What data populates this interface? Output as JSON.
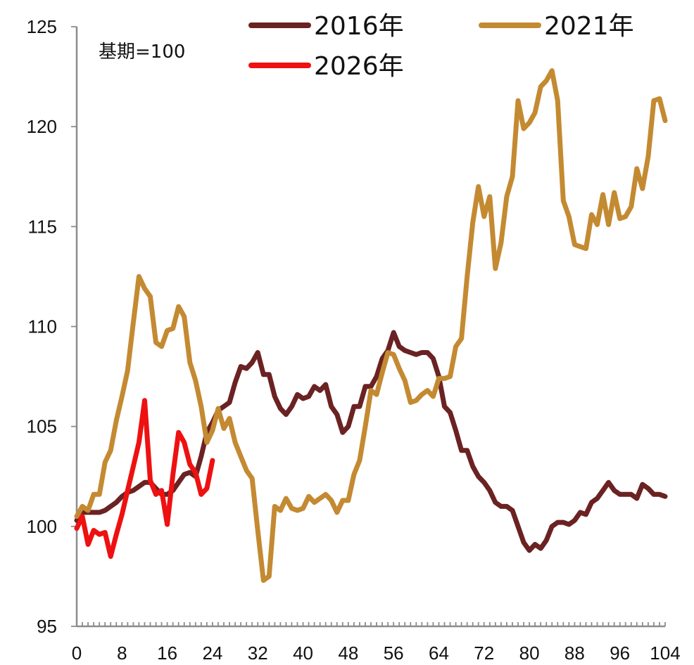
{
  "chart_data": {
    "type": "line",
    "title": "",
    "xlabel": "",
    "ylabel": "",
    "note": "基期=100",
    "xlim": [
      0,
      104
    ],
    "ylim": [
      95,
      125
    ],
    "x_ticks": [
      0,
      8,
      16,
      24,
      32,
      40,
      48,
      56,
      64,
      72,
      80,
      88,
      96,
      104
    ],
    "y_ticks": [
      95,
      100,
      105,
      110,
      115,
      120,
      125
    ],
    "grid": false,
    "legend_position": "top",
    "series": [
      {
        "name": "2016年",
        "color": "#6b2222",
        "x": [
          0,
          1,
          2,
          3,
          4,
          5,
          6,
          7,
          8,
          9,
          10,
          11,
          12,
          13,
          14,
          15,
          16,
          17,
          18,
          19,
          20,
          21,
          22,
          23,
          24,
          25,
          26,
          27,
          28,
          29,
          30,
          31,
          32,
          33,
          34,
          35,
          36,
          37,
          38,
          39,
          40,
          41,
          42,
          43,
          44,
          45,
          46,
          47,
          48,
          49,
          50,
          51,
          52,
          53,
          54,
          55,
          56,
          57,
          58,
          59,
          60,
          61,
          62,
          63,
          64,
          65,
          66,
          67,
          68,
          69,
          70,
          71,
          72,
          73,
          74,
          75,
          76,
          77,
          78,
          79,
          80,
          81,
          82,
          83,
          84,
          85,
          86,
          87,
          88,
          89,
          90,
          91,
          92,
          93,
          94,
          95,
          96,
          97,
          98,
          99,
          100,
          101,
          102,
          103,
          104
        ],
        "values": [
          100.3,
          100.7,
          100.7,
          100.7,
          100.7,
          100.8,
          101.0,
          101.2,
          101.5,
          101.7,
          101.8,
          102.0,
          102.2,
          102.2,
          101.9,
          101.6,
          101.6,
          101.8,
          102.2,
          102.6,
          102.7,
          102.5,
          103.5,
          104.7,
          105.2,
          105.8,
          106.0,
          106.2,
          107.2,
          108.0,
          107.9,
          108.2,
          108.7,
          107.6,
          107.6,
          106.5,
          105.9,
          105.6,
          106.0,
          106.6,
          106.4,
          106.5,
          107.0,
          106.8,
          107.1,
          106.0,
          105.6,
          104.7,
          105.0,
          106.0,
          106.0,
          107.0,
          107.0,
          107.5,
          108.4,
          108.8,
          109.7,
          109.0,
          108.8,
          108.7,
          108.6,
          108.7,
          108.7,
          108.4,
          107.5,
          106.0,
          105.7,
          104.8,
          103.8,
          103.8,
          103.0,
          102.5,
          102.2,
          101.8,
          101.2,
          101.0,
          101.0,
          100.8,
          100.0,
          99.2,
          98.8,
          99.1,
          98.9,
          99.3,
          100.0,
          100.2,
          100.2,
          100.1,
          100.3,
          100.7,
          100.6,
          101.2,
          101.4,
          101.8,
          102.2,
          101.8,
          101.6,
          101.6,
          101.6,
          101.4,
          102.1,
          101.9,
          101.6,
          101.6,
          101.5
        ]
      },
      {
        "name": "2021年",
        "color": "#c48a32",
        "x": [
          0,
          1,
          2,
          3,
          4,
          5,
          6,
          7,
          8,
          9,
          10,
          11,
          12,
          13,
          14,
          15,
          16,
          17,
          18,
          19,
          20,
          21,
          22,
          23,
          24,
          25,
          26,
          27,
          28,
          29,
          30,
          31,
          32,
          33,
          34,
          35,
          36,
          37,
          38,
          39,
          40,
          41,
          42,
          43,
          44,
          45,
          46,
          47,
          48,
          49,
          50,
          51,
          52,
          53,
          54,
          55,
          56,
          57,
          58,
          59,
          60,
          61,
          62,
          63,
          64,
          65,
          66,
          67,
          68,
          69,
          70,
          71,
          72,
          73,
          74,
          75,
          76,
          77,
          78,
          79,
          80,
          81,
          82,
          83,
          84,
          85,
          86,
          87,
          88,
          89,
          90,
          91,
          92,
          93,
          94,
          95,
          96,
          97,
          98,
          99,
          100,
          101,
          102,
          103,
          104
        ],
        "values": [
          100.5,
          101.0,
          100.8,
          101.6,
          101.6,
          103.2,
          103.8,
          105.3,
          106.5,
          107.8,
          110.2,
          112.5,
          111.9,
          111.5,
          109.2,
          109.0,
          109.8,
          109.9,
          111.0,
          110.5,
          108.2,
          107.3,
          106.0,
          104.2,
          104.8,
          105.9,
          104.9,
          105.4,
          104.2,
          103.5,
          102.8,
          102.4,
          99.8,
          97.3,
          97.5,
          101.0,
          100.8,
          101.4,
          100.9,
          100.8,
          100.9,
          101.5,
          101.2,
          101.4,
          101.6,
          101.3,
          100.7,
          101.3,
          101.3,
          102.6,
          103.3,
          105.0,
          106.8,
          106.6,
          107.7,
          108.7,
          108.6,
          107.9,
          107.3,
          106.2,
          106.3,
          106.6,
          106.8,
          106.5,
          107.4,
          107.4,
          107.5,
          109.0,
          109.4,
          112.5,
          115.2,
          117.0,
          115.5,
          116.5,
          112.9,
          114.2,
          116.5,
          117.5,
          121.3,
          119.9,
          120.2,
          120.7,
          122.0,
          122.3,
          122.8,
          121.3,
          116.3,
          115.5,
          114.1,
          114.0,
          113.9,
          115.6,
          115.1,
          116.6,
          115.1,
          116.7,
          115.4,
          115.5,
          116.0,
          117.9,
          116.9,
          118.5,
          121.3,
          121.4,
          120.3
        ]
      },
      {
        "name": "2026年",
        "color": "#ee1111",
        "x": [
          0,
          1,
          2,
          3,
          4,
          5,
          6,
          7,
          8,
          9,
          10,
          11,
          12,
          13,
          14,
          15,
          16,
          17,
          18,
          19,
          20,
          21,
          22,
          23,
          24
        ],
        "values": [
          99.9,
          100.5,
          99.1,
          99.8,
          99.6,
          99.7,
          98.5,
          99.6,
          100.6,
          101.8,
          103.0,
          104.2,
          106.3,
          102.3,
          101.6,
          101.8,
          100.1,
          102.6,
          104.7,
          104.2,
          103.1,
          102.7,
          101.6,
          101.9,
          103.3
        ]
      }
    ]
  }
}
